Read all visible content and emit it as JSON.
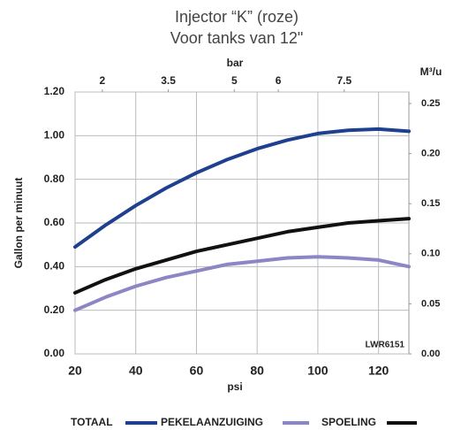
{
  "chart_data": {
    "type": "line",
    "title": "Injector “K” (roze)",
    "subtitle": "Voor tanks van 12\"",
    "x_label": "psi",
    "y_label": "Gallon per minuut",
    "y2_label": "M³/u",
    "x2_label": "bar",
    "annotation": "LWR6151",
    "x": [
      20,
      30,
      40,
      50,
      60,
      70,
      80,
      90,
      100,
      110,
      120,
      130
    ],
    "xlim": [
      20,
      130
    ],
    "xticks": [
      20,
      40,
      60,
      80,
      100,
      120
    ],
    "x2lim": [
      1.38,
      8.97
    ],
    "x2ticks": [
      2,
      3.5,
      5,
      6,
      7.5
    ],
    "ylim": [
      0,
      1.2
    ],
    "yticks": [
      {
        "value": 0,
        "label": "0.00"
      },
      {
        "value": 0.2,
        "label": "0.20"
      },
      {
        "value": 0.4,
        "label": "0.40"
      },
      {
        "value": 0.6,
        "label": "0.60"
      },
      {
        "value": 0.8,
        "label": "0.80"
      },
      {
        "value": 1.0,
        "label": "1.00"
      },
      {
        "value": 1.2,
        "label": "1.20"
      }
    ],
    "y2lim": [
      0,
      0.2615
    ],
    "y2ticks": [
      {
        "value": 0,
        "label": "0.00"
      },
      0.05,
      {
        "value": 0.1,
        "label": "0.10"
      },
      0.15,
      {
        "value": 0.2,
        "label": "0.20"
      },
      0.25
    ],
    "grid": true,
    "series": [
      {
        "name": "TOTAAL",
        "color": "#1f3f8f",
        "values": [
          0.49,
          0.59,
          0.68,
          0.76,
          0.83,
          0.89,
          0.94,
          0.98,
          1.01,
          1.025,
          1.03,
          1.02
        ]
      },
      {
        "name": "PEKELAANZUIGING",
        "color": "#8c86c4",
        "values": [
          0.2,
          0.26,
          0.31,
          0.35,
          0.38,
          0.41,
          0.425,
          0.44,
          0.445,
          0.44,
          0.43,
          0.4
        ]
      },
      {
        "name": "SPOELING",
        "color": "#111111",
        "values": [
          0.28,
          0.34,
          0.39,
          0.43,
          0.47,
          0.5,
          0.53,
          0.56,
          0.58,
          0.6,
          0.61,
          0.62
        ]
      }
    ]
  }
}
